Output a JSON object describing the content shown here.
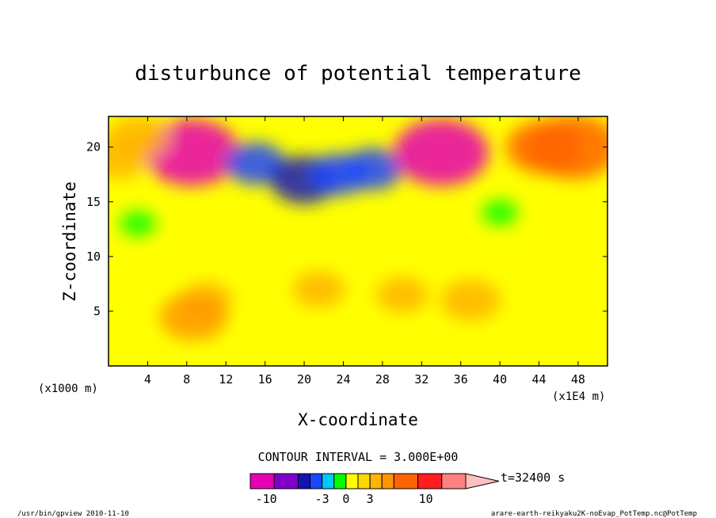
{
  "chart_data": {
    "type": "heatmap",
    "title": "disturbunce of potential temperature",
    "xlabel": "X-coordinate",
    "ylabel": "Z-coordinate",
    "x_unit_left": "(x1000 m)",
    "x_unit_right": "(x1E4 m)",
    "xlim": [
      0,
      51
    ],
    "ylim": [
      0,
      22.8
    ],
    "x_ticks": [
      4,
      8,
      12,
      16,
      20,
      24,
      28,
      32,
      36,
      40,
      44,
      48
    ],
    "y_ticks": [
      5,
      10,
      15,
      20
    ],
    "contour_interval_text": "CONTOUR INTERVAL = 3.000E+00",
    "time_label": "t=32400 s",
    "colorbar": {
      "levels": [
        -12,
        -9,
        -6,
        -4.5,
        -3,
        -1.5,
        0,
        1.5,
        3,
        4.5,
        6,
        9,
        12,
        15
      ],
      "colors": [
        "#e600b4",
        "#8000c8",
        "#1414b4",
        "#1e46ff",
        "#00c8ff",
        "#00ff00",
        "#ffff00",
        "#ffd800",
        "#ffb400",
        "#ff9600",
        "#ff6400",
        "#ff1e1e",
        "#ff8080",
        "#ffc0c0"
      ],
      "tick_labels": [
        {
          "text": "-10",
          "value": -10
        },
        {
          "text": "-3",
          "value": -3
        },
        {
          "text": "0",
          "value": 0
        },
        {
          "text": "3",
          "value": 3
        },
        {
          "text": "10",
          "value": 10
        }
      ]
    },
    "field_features": [
      {
        "x": 8.5,
        "z": 19.5,
        "value": -10
      },
      {
        "x": 15,
        "z": 18.5,
        "value": -4
      },
      {
        "x": 20,
        "z": 17,
        "value": -5
      },
      {
        "x": 23.5,
        "z": 17.5,
        "value": -4
      },
      {
        "x": 27,
        "z": 18,
        "value": -4
      },
      {
        "x": 34,
        "z": 19.5,
        "value": -10
      },
      {
        "x": 44.5,
        "z": 20,
        "value": 6
      },
      {
        "x": 47.5,
        "z": 20,
        "value": 8
      },
      {
        "x": 1,
        "z": 19,
        "value": 4
      },
      {
        "x": 3,
        "z": 21,
        "value": 4
      },
      {
        "x": 10,
        "z": 6,
        "value": 3
      },
      {
        "x": 30,
        "z": 6.5,
        "value": 3
      },
      {
        "x": 21.5,
        "z": 7,
        "value": 3
      },
      {
        "x": 8.7,
        "z": 4.5,
        "value": 5
      },
      {
        "x": 37,
        "z": 6,
        "value": 4
      },
      {
        "x": 40,
        "z": 14,
        "value": -1
      },
      {
        "x": 3,
        "z": 13,
        "value": -1
      }
    ]
  },
  "footer": {
    "left": "/usr/bin/gpview  2010-11-10",
    "right": "arare-earth-reikyaku2K-noEvap_PotTemp.nc@PotTemp"
  }
}
